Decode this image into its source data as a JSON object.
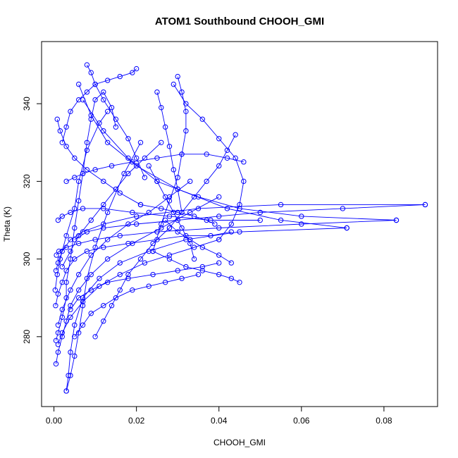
{
  "chart_data": {
    "type": "line",
    "title": "ATOM1 Southbound CHOOH_GMI",
    "xlabel": "CHOOH_GMI",
    "ylabel": "Theta (K)",
    "xlim": [
      -0.003,
      0.093
    ],
    "ylim": [
      262,
      356
    ],
    "x_ticks": [
      0.0,
      0.02,
      0.04,
      0.06,
      0.08
    ],
    "x_tick_labels": [
      "0.00",
      "0.02",
      "0.04",
      "0.06",
      "0.08"
    ],
    "y_ticks": [
      280,
      300,
      320,
      340
    ],
    "y_tick_labels": [
      "280",
      "300",
      "320",
      "340"
    ],
    "grid": false,
    "legend": "none",
    "series_color": "#0000ff",
    "marker": "open-circle",
    "series": [
      {
        "x": [
          0.0005,
          0.001,
          0.002,
          0.003,
          0.003,
          0.004,
          0.005,
          0.006,
          0.007,
          0.008,
          0.009,
          0.01,
          0.012,
          0.014,
          0.015
        ],
        "y": [
          279,
          281,
          285,
          290,
          294,
          300,
          308,
          315,
          322,
          330,
          336,
          341,
          343,
          339,
          334
        ]
      },
      {
        "x": [
          0.0003,
          0.0008,
          0.0015,
          0.003,
          0.005,
          0.006,
          0.008,
          0.011,
          0.013
        ],
        "y": [
          292,
          296,
          300,
          306,
          313,
          320,
          328,
          335,
          338
        ]
      },
      {
        "x": [
          0.001,
          0.002,
          0.004,
          0.006,
          0.009,
          0.013,
          0.018,
          0.023,
          0.028,
          0.033
        ],
        "y": [
          283,
          287,
          292,
          296,
          301,
          305,
          309,
          312,
          316,
          320
        ]
      },
      {
        "x": [
          0.0005,
          0.001,
          0.002,
          0.004,
          0.007,
          0.012,
          0.02,
          0.035,
          0.055,
          0.09
        ],
        "y": [
          297,
          299,
          302,
          305,
          307,
          309,
          311,
          313,
          314,
          314
        ]
      },
      {
        "x": [
          0.09,
          0.07,
          0.05,
          0.04,
          0.03,
          0.02,
          0.012,
          0.008,
          0.005
        ],
        "y": [
          314,
          313,
          312,
          311,
          310,
          309,
          308,
          307,
          305
        ]
      },
      {
        "x": [
          0.0006,
          0.0012,
          0.003,
          0.006,
          0.01,
          0.016,
          0.025,
          0.04,
          0.06,
          0.083
        ],
        "y": [
          301,
          302,
          303,
          304,
          305,
          306,
          307,
          308,
          309,
          310
        ]
      },
      {
        "x": [
          0.083,
          0.06,
          0.045,
          0.035,
          0.025,
          0.018,
          0.012,
          0.007
        ],
        "y": [
          310,
          311,
          313,
          316,
          320,
          326,
          333,
          341
        ]
      },
      {
        "x": [
          0.003,
          0.0035,
          0.004,
          0.005,
          0.007,
          0.011,
          0.016,
          0.023,
          0.032,
          0.045,
          0.071
        ],
        "y": [
          266,
          270,
          276,
          283,
          290,
          295,
          299,
          302,
          305,
          307,
          308
        ]
      },
      {
        "x": [
          0.071,
          0.055,
          0.042,
          0.03,
          0.02,
          0.013,
          0.009,
          0.006
        ],
        "y": [
          308,
          310,
          313,
          318,
          324,
          330,
          337,
          345
        ]
      },
      {
        "x": [
          0.003,
          0.004,
          0.005,
          0.006,
          0.007,
          0.008,
          0.01,
          0.013,
          0.017,
          0.021
        ],
        "y": [
          266,
          270,
          275,
          281,
          288,
          295,
          303,
          312,
          322,
          330
        ]
      },
      {
        "x": [
          0.008,
          0.009,
          0.01,
          0.012,
          0.015,
          0.018,
          0.02,
          0.022
        ],
        "y": [
          350,
          348,
          345,
          341,
          336,
          331,
          326,
          321
        ]
      },
      {
        "x": [
          0.001,
          0.002,
          0.004,
          0.007,
          0.011,
          0.016,
          0.022,
          0.028,
          0.034,
          0.04
        ],
        "y": [
          278,
          281,
          285,
          289,
          293,
          296,
          299,
          301,
          303,
          305
        ]
      },
      {
        "x": [
          0.04,
          0.043,
          0.045,
          0.046,
          0.044,
          0.04,
          0.036,
          0.032,
          0.029
        ],
        "y": [
          305,
          309,
          314,
          320,
          326,
          331,
          336,
          340,
          345
        ]
      },
      {
        "x": [
          0.03,
          0.031,
          0.032,
          0.032,
          0.031,
          0.03,
          0.028,
          0.026,
          0.024
        ],
        "y": [
          347,
          343,
          338,
          333,
          327,
          321,
          315,
          309,
          302
        ]
      },
      {
        "x": [
          0.024,
          0.028,
          0.032,
          0.036,
          0.04,
          0.043,
          0.045
        ],
        "y": [
          302,
          300,
          298,
          297,
          296,
          295,
          294
        ]
      },
      {
        "x": [
          0.0004,
          0.001,
          0.002,
          0.003,
          0.005,
          0.008,
          0.012,
          0.018,
          0.025,
          0.032,
          0.038,
          0.043
        ],
        "y": [
          288,
          291,
          294,
          297,
          300,
          302,
          303,
          304,
          305,
          306,
          306,
          307
        ]
      },
      {
        "x": [
          0.043,
          0.04,
          0.036,
          0.033,
          0.03,
          0.027
        ],
        "y": [
          299,
          301,
          303,
          305,
          307,
          310
        ]
      },
      {
        "x": [
          0.0005,
          0.001,
          0.002,
          0.003,
          0.004,
          0.006,
          0.009,
          0.013,
          0.019,
          0.026,
          0.033,
          0.04
        ],
        "y": [
          273,
          276,
          280,
          284,
          288,
          292,
          296,
          300,
          304,
          308,
          312,
          316
        ]
      },
      {
        "x": [
          0.025,
          0.026,
          0.027,
          0.028,
          0.029,
          0.03,
          0.031
        ],
        "y": [
          343,
          339,
          334,
          329,
          323,
          318,
          312
        ]
      },
      {
        "x": [
          0.003,
          0.005,
          0.007,
          0.01,
          0.014,
          0.019,
          0.025,
          0.031,
          0.037,
          0.042,
          0.046
        ],
        "y": [
          320,
          321,
          322,
          323,
          324,
          325,
          326,
          327,
          327,
          326,
          325
        ]
      },
      {
        "x": [
          0.002,
          0.003,
          0.004,
          0.006,
          0.008,
          0.01,
          0.013,
          0.016,
          0.019,
          0.02
        ],
        "y": [
          330,
          334,
          338,
          341,
          343,
          345,
          346,
          347,
          348,
          349
        ]
      },
      {
        "x": [
          0.001,
          0.002,
          0.004,
          0.007,
          0.012,
          0.019,
          0.028,
          0.038,
          0.05
        ],
        "y": [
          310,
          311,
          312,
          313,
          313,
          312,
          311,
          310,
          310
        ]
      },
      {
        "x": [
          0.005,
          0.007,
          0.009,
          0.012,
          0.015,
          0.019,
          0.023,
          0.027,
          0.031,
          0.035
        ],
        "y": [
          280,
          283,
          286,
          288,
          290,
          292,
          293,
          294,
          295,
          296
        ]
      },
      {
        "x": [
          0.034,
          0.033,
          0.031,
          0.029,
          0.027,
          0.025,
          0.023
        ],
        "y": [
          300,
          304,
          308,
          312,
          316,
          320,
          324
        ]
      },
      {
        "x": [
          0.004,
          0.006,
          0.009,
          0.013,
          0.018,
          0.024,
          0.03,
          0.036,
          0.04
        ],
        "y": [
          287,
          290,
          292,
          294,
          295,
          296,
          297,
          298,
          299
        ]
      },
      {
        "x": [
          0.0008,
          0.0015,
          0.003,
          0.005,
          0.008,
          0.012,
          0.016,
          0.021
        ],
        "y": [
          336,
          333,
          329,
          326,
          323,
          320,
          317,
          314
        ]
      },
      {
        "x": [
          0.021,
          0.026,
          0.03,
          0.034,
          0.037,
          0.039
        ],
        "y": [
          314,
          313,
          312,
          311,
          310,
          309
        ]
      },
      {
        "x": [
          0.002,
          0.004,
          0.006,
          0.009,
          0.012,
          0.015,
          0.018,
          0.022,
          0.026
        ],
        "y": [
          298,
          302,
          306,
          310,
          314,
          318,
          322,
          326,
          330
        ]
      },
      {
        "x": [
          0.01,
          0.012,
          0.014,
          0.016,
          0.018,
          0.021,
          0.024,
          0.028
        ],
        "y": [
          280,
          284,
          288,
          292,
          296,
          300,
          304,
          308
        ]
      },
      {
        "x": [
          0.028,
          0.031,
          0.034,
          0.037,
          0.04,
          0.042,
          0.044
        ],
        "y": [
          308,
          312,
          316,
          320,
          324,
          328,
          332
        ]
      }
    ]
  }
}
